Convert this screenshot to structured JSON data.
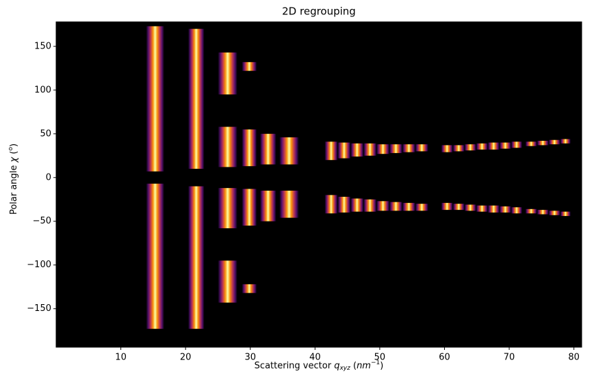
{
  "chart_data": {
    "type": "image",
    "title": "2D regrouping",
    "xlabel": [
      "Scattering vector ",
      "q",
      "xyz",
      " (",
      "nm",
      "−1",
      ")"
    ],
    "ylabel": [
      "Polar angle ",
      "χ",
      " (",
      "o",
      ")"
    ],
    "xlim": [
      0,
      81.2
    ],
    "ylim": [
      -194,
      178
    ],
    "xticks": [
      10,
      20,
      30,
      40,
      50,
      60,
      70,
      80
    ],
    "yticks": [
      {
        "value": -150,
        "label": "−150"
      },
      {
        "value": -100,
        "label": "−100"
      },
      {
        "value": -50,
        "label": "−50"
      },
      0,
      50,
      100,
      150
    ],
    "background": "#000000",
    "colors": [
      "#000004",
      "#57106e",
      "#bc3754",
      "#f98e09",
      "#fcffa4"
    ],
    "bands": [
      {
        "q": [
          13.9,
          16.7
        ],
        "chi": [
          7,
          173
        ]
      },
      {
        "q": [
          13.9,
          16.7
        ],
        "chi": [
          -173,
          -7
        ]
      },
      {
        "q": [
          20.4,
          22.9
        ],
        "chi": [
          10,
          170
        ]
      },
      {
        "q": [
          20.4,
          22.9
        ],
        "chi": [
          -173,
          -10
        ]
      },
      {
        "q": [
          25,
          28
        ],
        "chi": [
          12,
          58
        ]
      },
      {
        "q": [
          25,
          28
        ],
        "chi": [
          95,
          143
        ]
      },
      {
        "q": [
          25,
          28
        ],
        "chi": [
          -58,
          -12
        ]
      },
      {
        "q": [
          25,
          28
        ],
        "chi": [
          -143,
          -95
        ]
      },
      {
        "q": [
          28.7,
          31
        ],
        "chi": [
          13,
          55
        ]
      },
      {
        "q": [
          28.7,
          31
        ],
        "chi": [
          122,
          132
        ]
      },
      {
        "q": [
          28.7,
          31
        ],
        "chi": [
          -55,
          -13
        ]
      },
      {
        "q": [
          28.7,
          31
        ],
        "chi": [
          -132,
          -122
        ]
      },
      {
        "q": [
          31.5,
          34
        ],
        "chi": [
          15,
          50
        ]
      },
      {
        "q": [
          31.5,
          34
        ],
        "chi": [
          -50,
          -15
        ]
      },
      {
        "q": [
          34.5,
          37.5
        ],
        "chi": [
          15,
          46
        ]
      },
      {
        "q": [
          34.5,
          37.5
        ],
        "chi": [
          -46,
          -15
        ]
      },
      {
        "q": [
          41.5,
          43.5
        ],
        "chi": [
          20,
          41
        ]
      },
      {
        "q": [
          41.5,
          43.5
        ],
        "chi": [
          -41,
          -20
        ]
      },
      {
        "q": [
          43.5,
          45.5
        ],
        "chi": [
          22,
          40
        ]
      },
      {
        "q": [
          43.5,
          45.5
        ],
        "chi": [
          -40,
          -22
        ]
      },
      {
        "q": [
          45.5,
          47.5
        ],
        "chi": [
          24,
          39
        ]
      },
      {
        "q": [
          45.5,
          47.5
        ],
        "chi": [
          -39,
          -24
        ]
      },
      {
        "q": [
          47.5,
          49.5
        ],
        "chi": [
          25,
          39
        ]
      },
      {
        "q": [
          47.5,
          49.5
        ],
        "chi": [
          -39,
          -25
        ]
      },
      {
        "q": [
          49.5,
          51.5
        ],
        "chi": [
          27,
          38
        ]
      },
      {
        "q": [
          49.5,
          51.5
        ],
        "chi": [
          -38,
          -27
        ]
      },
      {
        "q": [
          51.5,
          53.5
        ],
        "chi": [
          28,
          38
        ]
      },
      {
        "q": [
          51.5,
          53.5
        ],
        "chi": [
          -38,
          -28
        ]
      },
      {
        "q": [
          53.5,
          55.5
        ],
        "chi": [
          29,
          38
        ]
      },
      {
        "q": [
          53.5,
          55.5
        ],
        "chi": [
          -38,
          -29
        ]
      },
      {
        "q": [
          55.5,
          57.5
        ],
        "chi": [
          30,
          38
        ]
      },
      {
        "q": [
          55.5,
          57.5
        ],
        "chi": [
          -38,
          -30
        ]
      },
      {
        "q": [
          59.5,
          61.3
        ],
        "chi": [
          29,
          37
        ]
      },
      {
        "q": [
          59.5,
          61.3
        ],
        "chi": [
          -37,
          -29
        ]
      },
      {
        "q": [
          61.3,
          63.1
        ],
        "chi": [
          30,
          37
        ]
      },
      {
        "q": [
          61.3,
          63.1
        ],
        "chi": [
          -37,
          -30
        ]
      },
      {
        "q": [
          63.1,
          64.9
        ],
        "chi": [
          31,
          38
        ]
      },
      {
        "q": [
          63.1,
          64.9
        ],
        "chi": [
          -38,
          -31
        ]
      },
      {
        "q": [
          64.9,
          66.7
        ],
        "chi": [
          32,
          39
        ]
      },
      {
        "q": [
          64.9,
          66.7
        ],
        "chi": [
          -39,
          -32
        ]
      },
      {
        "q": [
          66.7,
          68.5
        ],
        "chi": [
          32,
          40
        ]
      },
      {
        "q": [
          66.7,
          68.5
        ],
        "chi": [
          -40,
          -32
        ]
      },
      {
        "q": [
          68.5,
          70.3
        ],
        "chi": [
          33,
          40
        ]
      },
      {
        "q": [
          68.5,
          70.3
        ],
        "chi": [
          -40,
          -33
        ]
      },
      {
        "q": [
          70.3,
          72
        ],
        "chi": [
          34,
          41
        ]
      },
      {
        "q": [
          70.3,
          72
        ],
        "chi": [
          -41,
          -34
        ]
      },
      {
        "q": [
          72.5,
          74.3
        ],
        "chi": [
          36,
          41
        ]
      },
      {
        "q": [
          72.5,
          74.3
        ],
        "chi": [
          -41,
          -36
        ]
      },
      {
        "q": [
          74.3,
          76.1
        ],
        "chi": [
          37,
          42
        ]
      },
      {
        "q": [
          74.3,
          76.1
        ],
        "chi": [
          -42,
          -37
        ]
      },
      {
        "q": [
          76.1,
          77.9
        ],
        "chi": [
          38,
          43
        ]
      },
      {
        "q": [
          76.1,
          77.9
        ],
        "chi": [
          -43,
          -38
        ]
      },
      {
        "q": [
          77.9,
          79.5
        ],
        "chi": [
          39,
          44
        ]
      },
      {
        "q": [
          77.9,
          79.5
        ],
        "chi": [
          -44,
          -39
        ]
      }
    ]
  }
}
